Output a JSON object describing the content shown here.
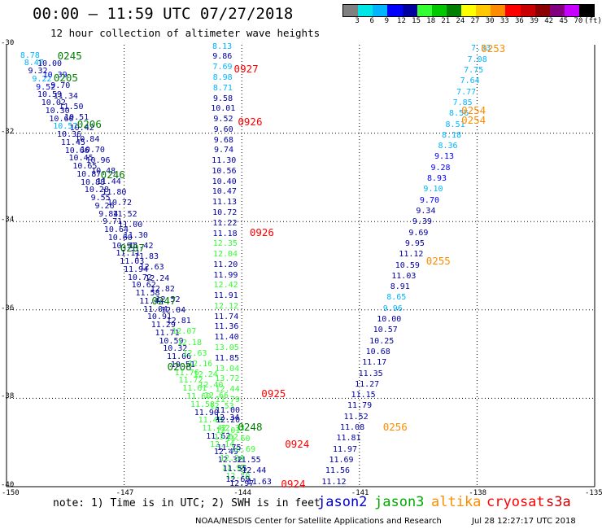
{
  "header": {
    "title": "00:00 – 11:59 UTC 07/27/2018",
    "subtitle": "12 hour collection of altimeter wave heights"
  },
  "colorbar": {
    "colors": [
      "#808080",
      "#00e6e6",
      "#00b4ff",
      "#0000ff",
      "#0000a0",
      "#33ff33",
      "#00c800",
      "#008000",
      "#ffff00",
      "#ffc800",
      "#ff8c00",
      "#ff0000",
      "#c80000",
      "#8b0000",
      "#800080",
      "#c800ff",
      "#000000"
    ],
    "labels": [
      "3",
      "6",
      "9",
      "12",
      "15",
      "18",
      "21",
      "24",
      "27",
      "30",
      "33",
      "36",
      "39",
      "42",
      "45",
      "70",
      "(ft)"
    ]
  },
  "map": {
    "lon_range": [
      -150,
      -135
    ],
    "lat_range": [
      -40,
      -30
    ],
    "lat_ticks": [
      "-30",
      "-32",
      "-34",
      "-36",
      "-38",
      "-40"
    ],
    "lon_ticks": [
      "-150",
      "-147",
      "-144",
      "-141",
      "-138",
      "-135"
    ]
  },
  "legend": {
    "note": "note:  1) Time is in UTC;  2) SWH is in feet",
    "items": [
      {
        "label": "jason2",
        "color": "#0000cc"
      },
      {
        "label": "jason3",
        "color": "#00aa00"
      },
      {
        "label": "altika",
        "color": "#ff8c00"
      },
      {
        "label": "cryosat",
        "color": "#ff0000"
      },
      {
        "label": "s3a",
        "color": "#cc0000"
      }
    ]
  },
  "footer": {
    "credit": "NOAA/NESDIS Center for Satellite Applications and Research",
    "timestamp": "Jul 28 12:27:17 UTC 2018"
  },
  "time_labels": [
    {
      "text": "0245",
      "lon": -148.7,
      "lat": -30.25,
      "color": "#008000"
    },
    {
      "text": "0205",
      "lon": -148.8,
      "lat": -30.75,
      "color": "#008000"
    },
    {
      "text": "0206",
      "lon": -148.2,
      "lat": -31.8,
      "color": "#008000"
    },
    {
      "text": "0246",
      "lon": -147.6,
      "lat": -32.95,
      "color": "#008000"
    },
    {
      "text": "0207",
      "lon": -147.1,
      "lat": -34.6,
      "color": "#008000"
    },
    {
      "text": "0247",
      "lon": -146.3,
      "lat": -35.8,
      "color": "#008000"
    },
    {
      "text": "0208",
      "lon": -145.9,
      "lat": -37.3,
      "color": "#008000"
    },
    {
      "text": "0248",
      "lon": -144.1,
      "lat": -38.65,
      "color": "#008000"
    },
    {
      "text": "0927",
      "lon": -144.2,
      "lat": -30.55,
      "color": "#ff0000"
    },
    {
      "text": "0926",
      "lon": -144.1,
      "lat": -31.75,
      "color": "#ff0000"
    },
    {
      "text": "0926",
      "lon": -143.8,
      "lat": -34.25,
      "color": "#ff0000"
    },
    {
      "text": "0925",
      "lon": -143.5,
      "lat": -37.9,
      "color": "#ff0000"
    },
    {
      "text": "0924",
      "lon": -142.9,
      "lat": -39.05,
      "color": "#ff0000"
    },
    {
      "text": "0924",
      "lon": -143.0,
      "lat": -39.95,
      "color": "#ff0000"
    },
    {
      "text": "0253",
      "lon": -137.9,
      "lat": -30.1,
      "color": "#ff8c00"
    },
    {
      "text": "0254",
      "lon": -138.4,
      "lat": -31.5,
      "color": "#ff8c00"
    },
    {
      "text": "0254",
      "lon": -138.4,
      "lat": -31.72,
      "color": "#ff8c00"
    },
    {
      "text": "0255",
      "lon": -139.3,
      "lat": -34.9,
      "color": "#ff8c00"
    },
    {
      "text": "0256",
      "lon": -140.4,
      "lat": -38.65,
      "color": "#ff8c00"
    }
  ],
  "tracks": [
    {
      "name": "track-a",
      "start": [
        -149.4,
        -30.25
      ],
      "end": [
        -144.0,
        -39.95
      ],
      "colors": [
        "#00b4ff",
        "#00b4ff",
        "#0000a0",
        "#00b4ff",
        "#0000ff",
        "#0000a0",
        "#0000a0",
        "#0000a0",
        "#0000a0",
        "#00b4ff",
        "#0000a0",
        "#0000a0",
        "#0000a0",
        "#0000a0",
        "#0000a0",
        "#0000a0",
        "#0000a0",
        "#0000a0",
        "#0000a0",
        "#0000a0",
        "#0000a0",
        "#0000a0",
        "#0000a0",
        "#0000a0",
        "#0000a0",
        "#0000a0",
        "#0000a0",
        "#0000a0",
        "#0000a0",
        "#0000a0",
        "#0000a0",
        "#0000a0",
        "#0000a0",
        "#0000a0",
        "#0000a0",
        "#0000a0",
        "#0000a0",
        "#0000a0",
        "#0000a0",
        "#0000a0",
        "#33ff33",
        "#33ff33",
        "#33ff33",
        "#33ff33",
        "#33ff33",
        "#0000a0",
        "#33ff33",
        "#33ff33",
        "#0000a0",
        "#33ff33",
        "#0000a0",
        "#0000a0",
        "#33ff33",
        "#33ff33",
        "#0000a0"
      ],
      "values": [
        "8.78",
        "8.47",
        "9.32",
        "9.22",
        "9.52",
        "10.59",
        "10.02",
        "10.30",
        "10.60",
        "10.57",
        "10.36",
        "11.45",
        "10.66",
        "10.45",
        "10.65",
        "10.87",
        "10.88",
        "10.28",
        "9.55",
        "9.26",
        "9.84",
        "9.71",
        "10.64",
        "10.60",
        "10.91",
        "11.11",
        "11.03",
        "11.94",
        "10.72",
        "10.62",
        "11.58",
        "11.44",
        "11.04",
        "10.91",
        "11.29",
        "11.71",
        "10.59",
        "10.32",
        "11.06",
        "10.51",
        "11.76",
        "11.72",
        "11.61",
        "11.60",
        "11.58",
        "11.90",
        "11.40",
        "11.42",
        "11.62",
        "12.14",
        "12.49",
        "12.32",
        "11.96",
        "12.70",
        "12.97"
      ]
    },
    {
      "name": "track-b",
      "start": [
        -148.9,
        -30.45
      ],
      "end": [
        -143.55,
        -39.9
      ],
      "colors": [
        "#0000a0",
        "#0000ff",
        "#0000a0",
        "#0000a0",
        "#0000a0",
        "#0000a0",
        "#0000a0",
        "#0000a0",
        "#0000a0",
        "#0000a0",
        "#0000a0",
        "#0000a0",
        "#0000a0",
        "#0000a0",
        "#0000a0",
        "#0000a0",
        "#0000a0",
        "#0000a0",
        "#0000a0",
        "#0000a0",
        "#0000a0",
        "#0000a0",
        "#0000a0",
        "#0000a0",
        "#0000a0",
        "#33ff33",
        "#33ff33",
        "#33ff33",
        "#33ff33",
        "#33ff33",
        "#33ff33",
        "#33ff33",
        "#33ff33",
        "#0000a0",
        "#33ff33",
        "#33ff33",
        "#33ff33",
        "#0000a0",
        "#0000a0",
        "#0000a0"
      ],
      "values": [
        "10.00",
        "10.39",
        "9.70",
        "11.34",
        "11.50",
        "10.51",
        "10.42",
        "10.84",
        "10.70",
        "10.96",
        "10.48",
        "11.44",
        "11.80",
        "10.72",
        "11.52",
        "11.00",
        "11.30",
        "11.42",
        "11.83",
        "12.63",
        "12.24",
        "12.82",
        "12.52",
        "12.04",
        "12.81",
        "12.07",
        "12.18",
        "12.63",
        "12.16",
        "12.24",
        "12.40",
        "12.66",
        "12.53",
        "12.34",
        "12.33",
        "11.60",
        "10.69",
        "11.55",
        "12.44",
        "11.63"
      ]
    },
    {
      "name": "track-c",
      "start": [
        -144.5,
        -30.05
      ],
      "end": [
        -144.35,
        -38.75
      ],
      "colors": [
        "#00b4ff",
        "#0000a0",
        "#00b4ff",
        "#00b4ff",
        "#00b4ff",
        "#0000a0",
        "#0000a0",
        "#0000a0",
        "#0000a0",
        "#0000a0",
        "#0000a0",
        "#0000a0",
        "#0000a0",
        "#0000a0",
        "#0000a0",
        "#0000a0",
        "#0000a0",
        "#0000a0",
        "#0000a0",
        "#33ff33",
        "#33ff33",
        "#0000a0",
        "#0000a0",
        "#33ff33",
        "#0000a0",
        "#33ff33",
        "#0000a0",
        "#0000a0",
        "#0000a0",
        "#33ff33",
        "#0000a0",
        "#33ff33",
        "#33ff33",
        "#33ff33",
        "#33ff33",
        "#0000a0",
        "#0000a0",
        "#33ff33"
      ],
      "values": [
        "8.13",
        "9.86",
        "7.69",
        "8.98",
        "8.71",
        "9.58",
        "10.01",
        "9.52",
        "9.60",
        "9.68",
        "9.74",
        "11.30",
        "10.56",
        "10.40",
        "10.47",
        "11.13",
        "10.72",
        "11.22",
        "11.18",
        "12.35",
        "12.04",
        "11.20",
        "11.99",
        "12.42",
        "11.91",
        "12.12",
        "11.74",
        "11.36",
        "11.40",
        "13.05",
        "11.85",
        "13.04",
        "13.72",
        "12.44",
        "11.79",
        "11.00",
        "12.20",
        "12.01"
      ]
    },
    {
      "name": "track-d",
      "start": [
        -144.4,
        -38.9
      ],
      "end": [
        -144.1,
        -39.85
      ],
      "colors": [
        "#33ff33",
        "#0000a0",
        "#33ff33",
        "#0000a0",
        "#0000a0"
      ],
      "values": [
        "13.62",
        "11.75",
        "12.24",
        "11.55",
        "12.69"
      ]
    },
    {
      "name": "track-e",
      "start": [
        -137.9,
        -30.1
      ],
      "end": [
        -141.65,
        -39.9
      ],
      "colors": [
        "#00b4ff",
        "#00b4ff",
        "#00b4ff",
        "#00b4ff",
        "#00b4ff",
        "#00b4ff",
        "#00b4ff",
        "#00b4ff",
        "#00b4ff",
        "#00b4ff",
        "#0000ff",
        "#0000ff",
        "#0000ff",
        "#00b4ff",
        "#0000ff",
        "#0000a0",
        "#0000a0",
        "#0000a0",
        "#0000a0",
        "#0000a0",
        "#0000a0",
        "#0000a0",
        "#0000a0",
        "#00b4ff",
        "#00b4ff",
        "#0000a0",
        "#0000a0",
        "#0000a0",
        "#0000a0",
        "#0000a0",
        "#0000a0",
        "#0000a0",
        "#0000a0",
        "#0000a0",
        "#0000a0",
        "#0000a0",
        "#0000a0",
        "#0000a0",
        "#0000a0",
        "#0000a0",
        "#0000a0"
      ],
      "values": [
        "7.33",
        "7.08",
        "7.75",
        "7.64",
        "7.77",
        "7.85",
        "8.56",
        "8.51",
        "8.18",
        "8.36",
        "9.13",
        "9.28",
        "8.93",
        "9.10",
        "9.70",
        "9.34",
        "9.39",
        "9.69",
        "9.95",
        "11.12",
        "10.59",
        "11.03",
        "8.91",
        "8.65",
        "9.96",
        "10.00",
        "10.57",
        "10.25",
        "10.68",
        "11.17",
        "11.35",
        "11.27",
        "11.15",
        "11.79",
        "11.52",
        "11.08",
        "11.81",
        "11.97",
        "11.69",
        "11.56",
        "11.12"
      ]
    }
  ]
}
